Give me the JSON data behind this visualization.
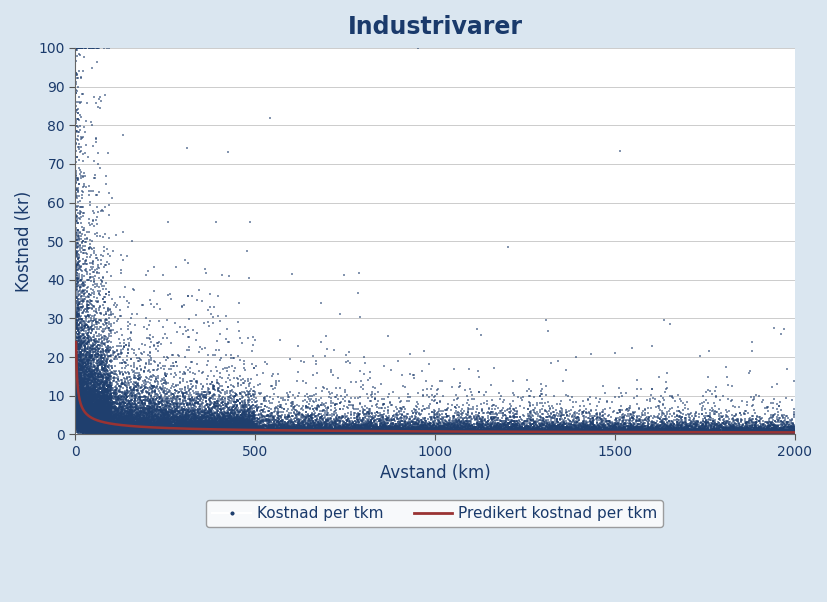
{
  "title": "Industrivarer",
  "xlabel": "Avstand (km)",
  "ylabel": "Kostnad (kr)",
  "xlim": [
    0,
    2000
  ],
  "ylim": [
    0,
    100
  ],
  "xticks": [
    0,
    500,
    1000,
    1500,
    2000
  ],
  "yticks": [
    0,
    10,
    20,
    30,
    40,
    50,
    60,
    70,
    80,
    90,
    100
  ],
  "scatter_color": "#1f3f6e",
  "line_color": "#993333",
  "background_color": "#dae6f0",
  "plot_bg_color": "#ffffff",
  "scatter_label": "Kostnad per tkm",
  "line_label": "Predikert kostnad per tkm",
  "n_points": 60000,
  "seed": 42,
  "curve_a": 35.0,
  "curve_b": 0.55,
  "title_fontsize": 17,
  "axis_fontsize": 12,
  "tick_fontsize": 10,
  "legend_fontsize": 11
}
